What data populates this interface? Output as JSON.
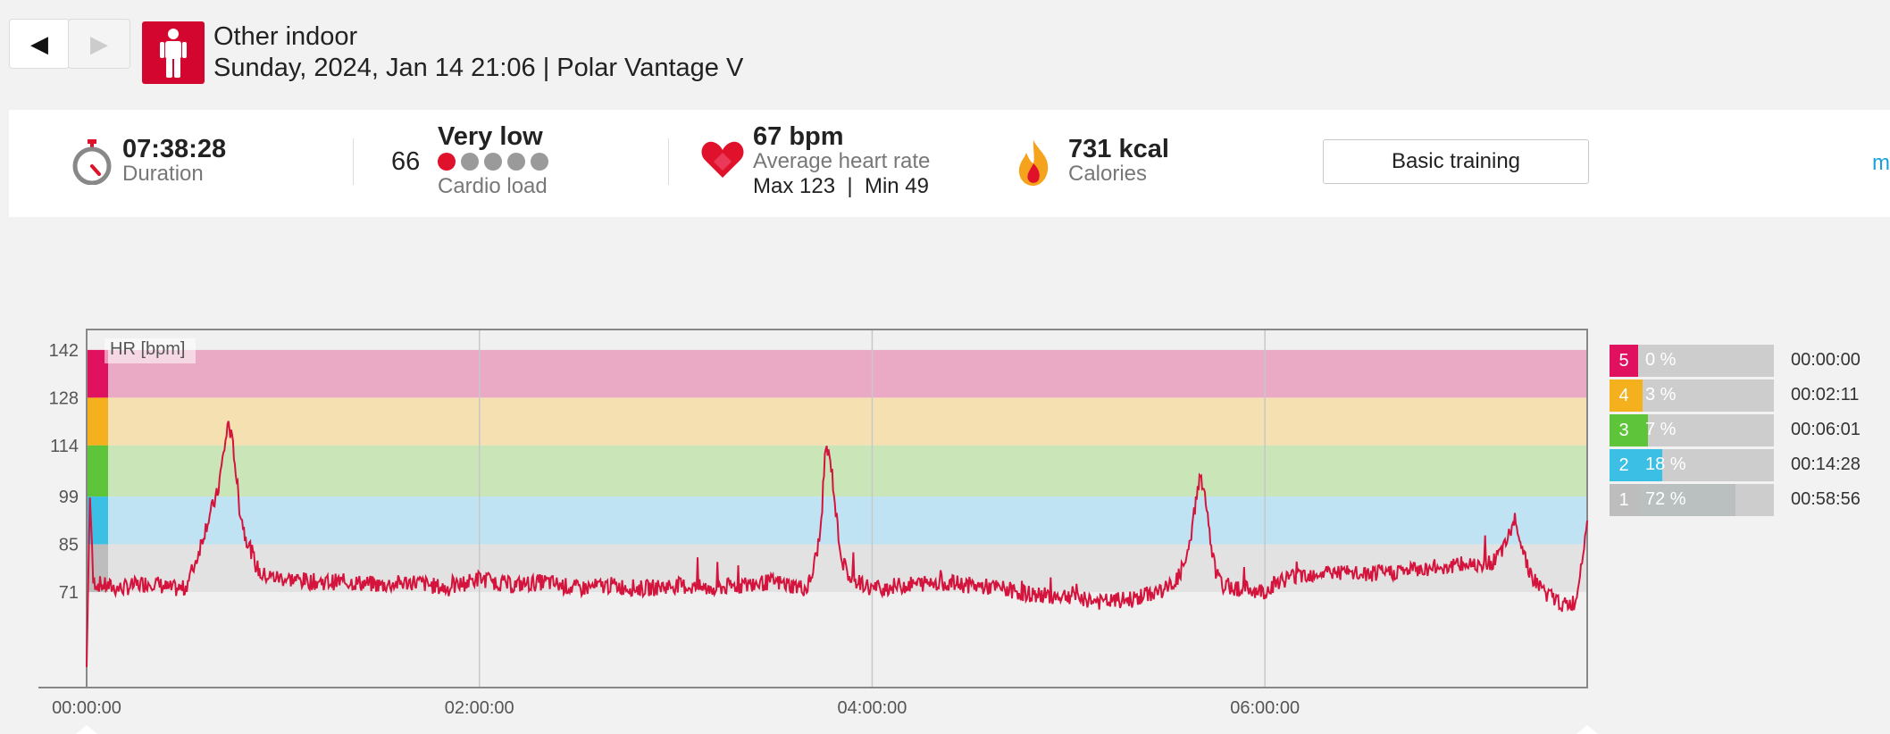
{
  "nav": {
    "prev_icon": "◀",
    "next_icon": "▶"
  },
  "session": {
    "sport": "Other indoor",
    "subtitle": "Sunday, 2024, Jan 14 21:06 | Polar Vantage V",
    "sport_icon": "person-standing-icon",
    "icon_color": "#d3062f"
  },
  "summary": {
    "duration": {
      "value": "07:38:28",
      "label": "Duration"
    },
    "cardio": {
      "score": "66",
      "level": "Very low",
      "label": "Cardio load",
      "dots_filled": 1,
      "dots_total": 5
    },
    "heart": {
      "value": "67 bpm",
      "label": "Average heart rate",
      "minmax": "Max 123  |  Min 49"
    },
    "calories": {
      "value": "731 kcal",
      "label": "Calories"
    },
    "benefit_button": "Basic training",
    "more_link": "mo"
  },
  "chart_data": {
    "type": "line",
    "series_label": "HR [bpm]",
    "y_ticks": [
      142,
      128,
      114,
      99,
      85,
      71
    ],
    "ylim": [
      43,
      148
    ],
    "x_ticks": [
      "00:00:00",
      "02:00:00",
      "04:00:00",
      "06:00:00"
    ],
    "x_ticks_sec": [
      0,
      7200,
      14400,
      21600
    ],
    "xlim_sec": [
      0,
      27508
    ],
    "zone_bands": [
      {
        "zone": 5,
        "from": 128,
        "to": 142,
        "color": "#eaa9c4",
        "marker": "#e0115f"
      },
      {
        "zone": 4,
        "from": 114,
        "to": 128,
        "color": "#f4e0b0",
        "marker": "#f5b01d"
      },
      {
        "zone": 3,
        "from": 99,
        "to": 114,
        "color": "#cae6b8",
        "marker": "#5ec43a"
      },
      {
        "zone": 2,
        "from": 85,
        "to": 99,
        "color": "#bfe3f2",
        "marker": "#3bbfe5"
      },
      {
        "zone": 1,
        "from": 71,
        "to": 85,
        "color": "#e2e2e2",
        "marker": "#bdbdbd"
      }
    ],
    "line_color": "#d4143c",
    "hr_points": [
      [
        0,
        49
      ],
      [
        60,
        100
      ],
      [
        120,
        74
      ],
      [
        300,
        73
      ],
      [
        600,
        72
      ],
      [
        900,
        73
      ],
      [
        1200,
        74
      ],
      [
        1500,
        72
      ],
      [
        1800,
        72
      ],
      [
        2000,
        80
      ],
      [
        2200,
        91
      ],
      [
        2400,
        100
      ],
      [
        2600,
        121
      ],
      [
        2700,
        112
      ],
      [
        2800,
        96
      ],
      [
        2900,
        88
      ],
      [
        3000,
        84
      ],
      [
        3100,
        79
      ],
      [
        3200,
        76
      ],
      [
        3600,
        75
      ],
      [
        4200,
        74
      ],
      [
        4800,
        74
      ],
      [
        5400,
        73
      ],
      [
        6000,
        74
      ],
      [
        6600,
        72
      ],
      [
        7200,
        75
      ],
      [
        7800,
        73
      ],
      [
        8400,
        74
      ],
      [
        9000,
        72
      ],
      [
        9600,
        73
      ],
      [
        10200,
        72
      ],
      [
        10800,
        73
      ],
      [
        11400,
        72
      ],
      [
        12000,
        73
      ],
      [
        12600,
        74
      ],
      [
        13200,
        72
      ],
      [
        13300,
        76
      ],
      [
        13450,
        88
      ],
      [
        13550,
        114
      ],
      [
        13650,
        108
      ],
      [
        13750,
        92
      ],
      [
        13850,
        80
      ],
      [
        14000,
        75
      ],
      [
        14400,
        72
      ],
      [
        15000,
        73
      ],
      [
        15600,
        74
      ],
      [
        16200,
        73
      ],
      [
        16800,
        72
      ],
      [
        17400,
        70
      ],
      [
        18000,
        70
      ],
      [
        18600,
        68
      ],
      [
        19200,
        69
      ],
      [
        19800,
        72
      ],
      [
        20000,
        75
      ],
      [
        20200,
        82
      ],
      [
        20300,
        94
      ],
      [
        20400,
        105
      ],
      [
        20500,
        100
      ],
      [
        20600,
        85
      ],
      [
        20700,
        77
      ],
      [
        20800,
        73
      ],
      [
        21200,
        72
      ],
      [
        21600,
        71
      ],
      [
        21800,
        74
      ],
      [
        22200,
        76
      ],
      [
        22800,
        77
      ],
      [
        23400,
        76
      ],
      [
        24000,
        77
      ],
      [
        24600,
        78
      ],
      [
        25200,
        79
      ],
      [
        25800,
        80
      ],
      [
        26000,
        84
      ],
      [
        26200,
        93
      ],
      [
        26300,
        85
      ],
      [
        26500,
        75
      ],
      [
        26800,
        70
      ],
      [
        27100,
        67
      ],
      [
        27300,
        68
      ],
      [
        27450,
        86
      ],
      [
        27508,
        92
      ]
    ]
  },
  "zones": [
    {
      "num": "5",
      "pct": "0 %",
      "fraction": 0.0,
      "time": "00:00:00",
      "color": "#e0115f",
      "fill": "#e2115f"
    },
    {
      "num": "4",
      "pct": "3 %",
      "fraction": 0.03,
      "time": "00:02:11",
      "color": "#f5b01d",
      "fill": "#f5b01d"
    },
    {
      "num": "3",
      "pct": "7 %",
      "fraction": 0.07,
      "time": "00:06:01",
      "color": "#5ec43a",
      "fill": "#5ec43a"
    },
    {
      "num": "2",
      "pct": "18 %",
      "fraction": 0.18,
      "time": "00:14:28",
      "color": "#3bbfe5",
      "fill": "#3bbfe5"
    },
    {
      "num": "1",
      "pct": "72 %",
      "fraction": 0.72,
      "time": "00:58:56",
      "color": "#bdbdbd",
      "fill": "#b9c0bf"
    }
  ]
}
